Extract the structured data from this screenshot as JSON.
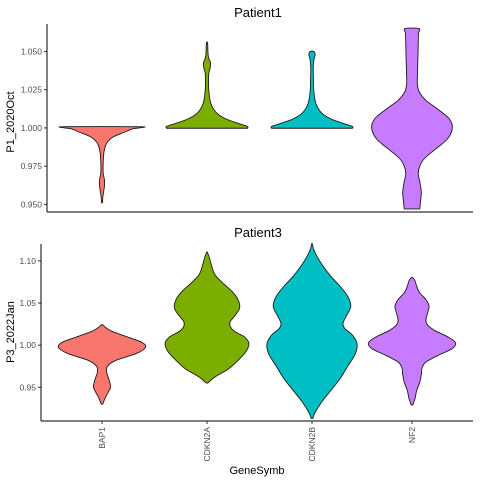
{
  "chart_data": {
    "type": "violin",
    "xlabel": "GeneSymb",
    "categories": [
      "BAP1",
      "CDKN2A",
      "CDKN2B",
      "NF2"
    ],
    "colors": [
      "#F8766D",
      "#7CAE00",
      "#00BFC4",
      "#C77CFF"
    ],
    "panels": [
      {
        "title": "Patient1",
        "ylabel": "P1_2020Oct",
        "ylim": [
          0.945,
          1.068
        ],
        "yticks": [
          0.95,
          0.975,
          1.0,
          1.025,
          1.05
        ],
        "ytick_labels": [
          "0.950",
          "0.975",
          "1.000",
          "1.025",
          "1.050"
        ],
        "violins": [
          {
            "category": "BAP1",
            "profile": [
              [
                0.951,
                0.2
              ],
              [
                0.956,
                0.7
              ],
              [
                0.962,
                1.6
              ],
              [
                0.966,
                1.6
              ],
              [
                0.97,
                0.8
              ],
              [
                0.975,
                0.7
              ],
              [
                0.98,
                0.9
              ],
              [
                0.985,
                1.4
              ],
              [
                0.99,
                3
              ],
              [
                0.994,
                7
              ],
              [
                0.997,
                14
              ],
              [
                0.9995,
                20
              ],
              [
                1.0,
                24
              ],
              [
                1.0008,
                24
              ]
            ]
          },
          {
            "category": "CDKN2A",
            "profile": [
              [
                0.9998,
                26
              ],
              [
                1.001,
                26
              ],
              [
                1.003,
                20
              ],
              [
                1.006,
                12
              ],
              [
                1.01,
                6
              ],
              [
                1.016,
                2.5
              ],
              [
                1.024,
                1.2
              ],
              [
                1.032,
                1.0
              ],
              [
                1.036,
                1.2
              ],
              [
                1.04,
                2.2
              ],
              [
                1.043,
                2.2
              ],
              [
                1.046,
                1.0
              ],
              [
                1.05,
                0.6
              ],
              [
                1.054,
                0.5
              ],
              [
                1.056,
                0.2
              ]
            ]
          },
          {
            "category": "CDKN2B",
            "profile": [
              [
                0.9998,
                26
              ],
              [
                1.001,
                26
              ],
              [
                1.003,
                20
              ],
              [
                1.006,
                12
              ],
              [
                1.01,
                6
              ],
              [
                1.016,
                2.5
              ],
              [
                1.024,
                1.2
              ],
              [
                1.032,
                0.9
              ],
              [
                1.04,
                0.8
              ],
              [
                1.045,
                1.3
              ],
              [
                1.048,
                2.0
              ],
              [
                1.05,
                1.2
              ]
            ]
          },
          {
            "category": "NF2",
            "profile": [
              [
                0.947,
                5
              ],
              [
                0.952,
                5.5
              ],
              [
                0.958,
                6
              ],
              [
                0.965,
                5
              ],
              [
                0.97,
                4
              ],
              [
                0.975,
                5
              ],
              [
                0.98,
                8
              ],
              [
                0.986,
                15
              ],
              [
                0.993,
                23
              ],
              [
                1.0,
                26
              ],
              [
                1.006,
                24
              ],
              [
                1.012,
                17
              ],
              [
                1.018,
                9
              ],
              [
                1.023,
                5
              ],
              [
                1.028,
                3.5
              ],
              [
                1.035,
                3.5
              ],
              [
                1.045,
                3.8
              ],
              [
                1.055,
                4
              ],
              [
                1.062,
                4.2
              ],
              [
                1.065,
                4.5
              ]
            ]
          }
        ]
      },
      {
        "title": "Patient3",
        "ylabel": "P3_2022Jan",
        "ylim": [
          0.91,
          1.12
        ],
        "yticks": [
          0.95,
          1.0,
          1.05,
          1.1
        ],
        "ytick_labels": [
          "0.95",
          "1.00",
          "1.05",
          "1.10"
        ],
        "violins": [
          {
            "category": "BAP1",
            "profile": [
              [
                0.93,
                0.5
              ],
              [
                0.937,
                2
              ],
              [
                0.944,
                4
              ],
              [
                0.95,
                5.5
              ],
              [
                0.956,
                5
              ],
              [
                0.962,
                4
              ],
              [
                0.968,
                3
              ],
              [
                0.975,
                3.5
              ],
              [
                0.982,
                9
              ],
              [
                0.99,
                22
              ],
              [
                0.997,
                28
              ],
              [
                1.003,
                26
              ],
              [
                1.01,
                16
              ],
              [
                1.016,
                7
              ],
              [
                1.02,
                3
              ],
              [
                1.024,
                0.5
              ]
            ]
          },
          {
            "category": "CDKN2A",
            "profile": [
              [
                0.955,
                0.5
              ],
              [
                0.962,
                5
              ],
              [
                0.972,
                14
              ],
              [
                0.982,
                20
              ],
              [
                0.992,
                25
              ],
              [
                1.002,
                27
              ],
              [
                1.01,
                24
              ],
              [
                1.016,
                18
              ],
              [
                1.022,
                15
              ],
              [
                1.028,
                15
              ],
              [
                1.035,
                18
              ],
              [
                1.044,
                21
              ],
              [
                1.054,
                20
              ],
              [
                1.064,
                16
              ],
              [
                1.074,
                10
              ],
              [
                1.084,
                5
              ],
              [
                1.094,
                3
              ],
              [
                1.104,
                1.5
              ],
              [
                1.11,
                0.2
              ]
            ]
          },
          {
            "category": "CDKN2B",
            "profile": [
              [
                0.913,
                0.5
              ],
              [
                0.92,
                2
              ],
              [
                0.932,
                6
              ],
              [
                0.946,
                12
              ],
              [
                0.96,
                18
              ],
              [
                0.975,
                23
              ],
              [
                0.99,
                28
              ],
              [
                1.002,
                29
              ],
              [
                1.012,
                26
              ],
              [
                1.02,
                21
              ],
              [
                1.026,
                20
              ],
              [
                1.034,
                22
              ],
              [
                1.046,
                25
              ],
              [
                1.058,
                23
              ],
              [
                1.07,
                18
              ],
              [
                1.082,
                12
              ],
              [
                1.094,
                7
              ],
              [
                1.106,
                3
              ],
              [
                1.114,
                1
              ],
              [
                1.12,
                0.2
              ]
            ]
          },
          {
            "category": "NF2",
            "profile": [
              [
                0.929,
                0.5
              ],
              [
                0.937,
                2
              ],
              [
                0.946,
                3
              ],
              [
                0.956,
                5
              ],
              [
                0.965,
                6
              ],
              [
                0.973,
                6.5
              ],
              [
                0.98,
                9
              ],
              [
                0.988,
                17
              ],
              [
                0.996,
                26
              ],
              [
                1.003,
                28
              ],
              [
                1.01,
                23
              ],
              [
                1.017,
                15
              ],
              [
                1.024,
                10
              ],
              [
                1.03,
                9
              ],
              [
                1.038,
                10
              ],
              [
                1.046,
                11
              ],
              [
                1.054,
                9
              ],
              [
                1.062,
                5
              ],
              [
                1.07,
                3
              ],
              [
                1.076,
                2
              ],
              [
                1.08,
                0.5
              ]
            ]
          }
        ]
      }
    ]
  }
}
